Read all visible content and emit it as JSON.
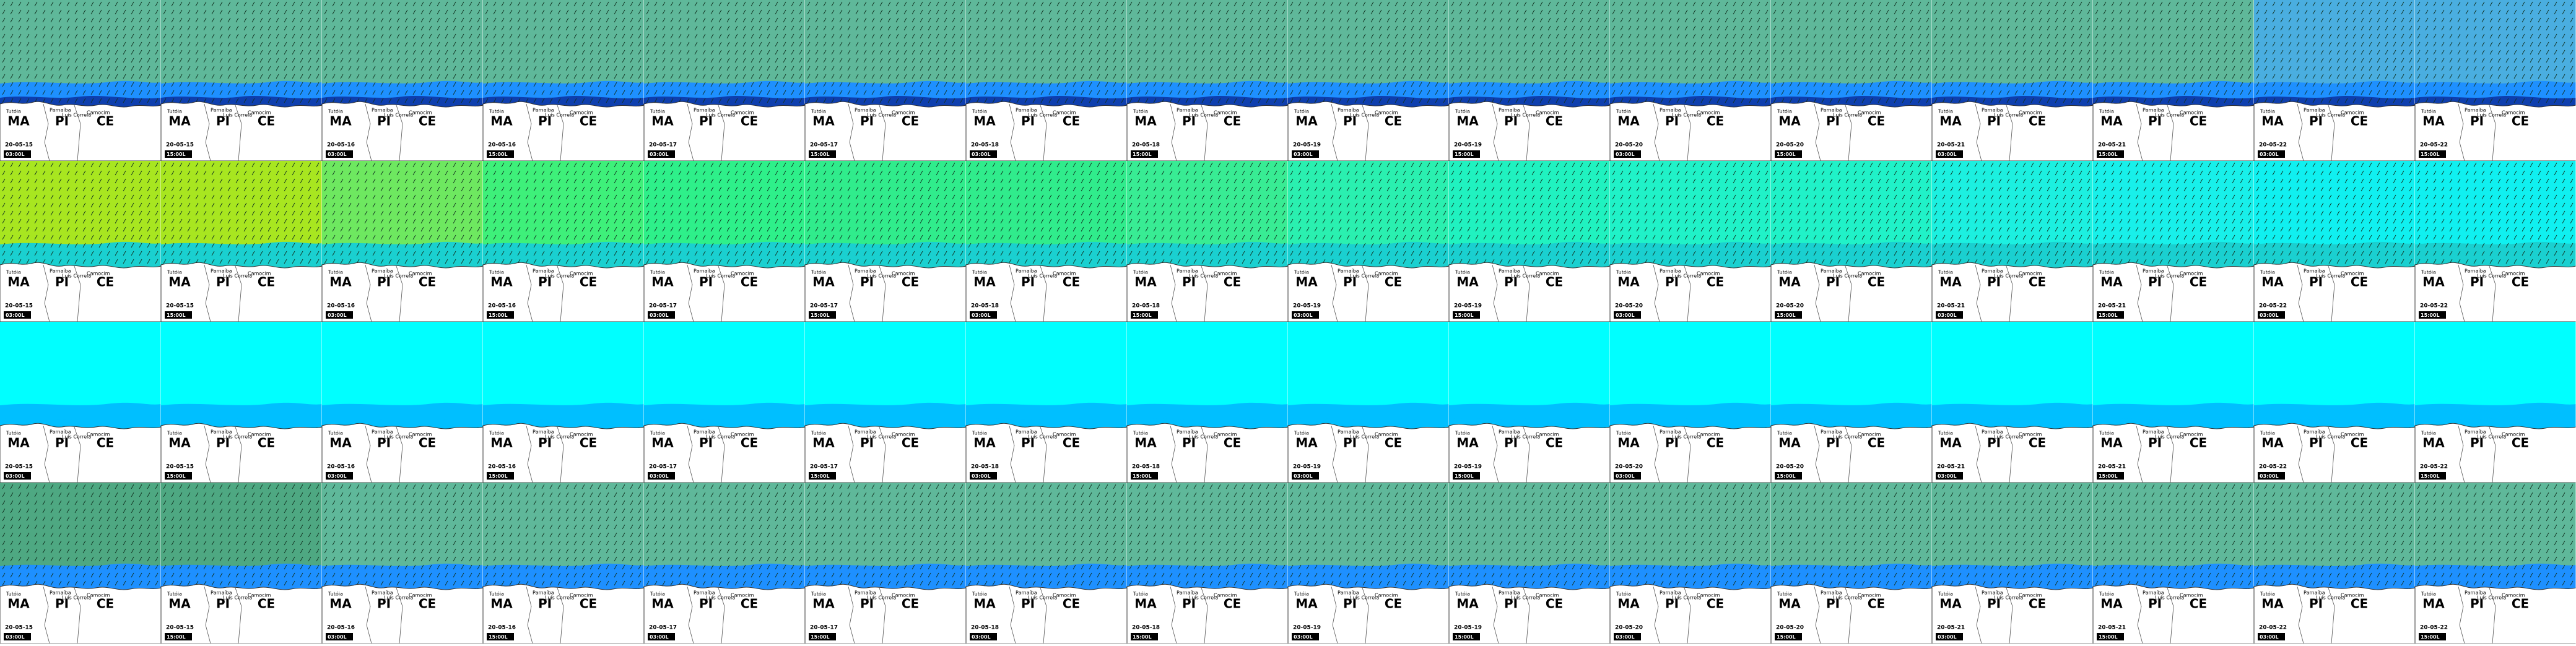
{
  "map_labels": {
    "states": [
      "MA",
      "PI",
      "CE"
    ],
    "cities": [
      "Tutóia",
      "Parnaíba",
      "Luís Correia",
      "Camocim"
    ]
  },
  "panels": [
    {
      "date": "20-05-15",
      "time": "03:00L"
    },
    {
      "date": "20-05-15",
      "time": "15:00L"
    },
    {
      "date": "20-05-16",
      "time": "03:00L"
    },
    {
      "date": "20-05-16",
      "time": "15:00L"
    },
    {
      "date": "20-05-17",
      "time": "03:00L"
    },
    {
      "date": "20-05-17",
      "time": "15:00L"
    },
    {
      "date": "20-05-18",
      "time": "03:00L"
    },
    {
      "date": "20-05-18",
      "time": "15:00L"
    },
    {
      "date": "20-05-19",
      "time": "03:00L"
    },
    {
      "date": "20-05-19",
      "time": "15:00L"
    },
    {
      "date": "20-05-20",
      "time": "03:00L"
    },
    {
      "date": "20-05-20",
      "time": "15:00L"
    },
    {
      "date": "20-05-21",
      "time": "03:00L"
    },
    {
      "date": "20-05-21",
      "time": "15:00L"
    },
    {
      "date": "20-05-22",
      "time": "03:00L"
    },
    {
      "date": "20-05-22",
      "time": "15:00L"
    }
  ],
  "rows": [
    {
      "sea_colors": [
        "#5fb89a",
        "#5fb89a",
        "#5fb89a",
        "#5fb89a",
        "#5fb89a",
        "#5fb89a",
        "#5fb89a",
        "#5fb89a",
        "#5fb89a",
        "#5fb89a",
        "#5fb89a",
        "#5fb89a",
        "#5fb89a",
        "#5fb89a",
        "#4aaee0",
        "#4aaee0"
      ],
      "coast_color": "#1e90ff",
      "shore_color": "#0a2a9a"
    },
    {
      "sea_colors": [
        "#a8e620",
        "#a8e620",
        "#6ee860",
        "#3ef07a",
        "#2ef08a",
        "#30ec8c",
        "#30ec8c",
        "#38ec94",
        "#2af0b0",
        "#20f2c0",
        "#20f2c8",
        "#20f2c8",
        "#1cf0e0",
        "#18f0ea",
        "#10f0f0",
        "#10f0f0"
      ],
      "coast_color": "#1ad0d0",
      "shore_color": "#1ad0d0"
    },
    {
      "sea_colors": [
        "#00ffff",
        "#00ffff",
        "#00ffff",
        "#00ffff",
        "#00ffff",
        "#00ffff",
        "#00ffff",
        "#00ffff",
        "#00ffff",
        "#00ffff",
        "#00ffff",
        "#00ffff",
        "#00ffff",
        "#00ffff",
        "#00ffff",
        "#00ffff"
      ],
      "coast_color": "#00bfff",
      "shore_color": "#00bfff"
    },
    {
      "sea_colors": [
        "#4ea882",
        "#4ea882",
        "#5fb89a",
        "#5fb89a",
        "#5fb89a",
        "#5fb89a",
        "#5fb89a",
        "#5fb89a",
        "#5fb89a",
        "#5fb89a",
        "#5fb89a",
        "#5fb89a",
        "#5fb89a",
        "#5fb89a",
        "#5fb89a",
        "#5fb89a"
      ],
      "coast_color": "#1e90ff",
      "shore_color": "#1e90ff"
    }
  ]
}
